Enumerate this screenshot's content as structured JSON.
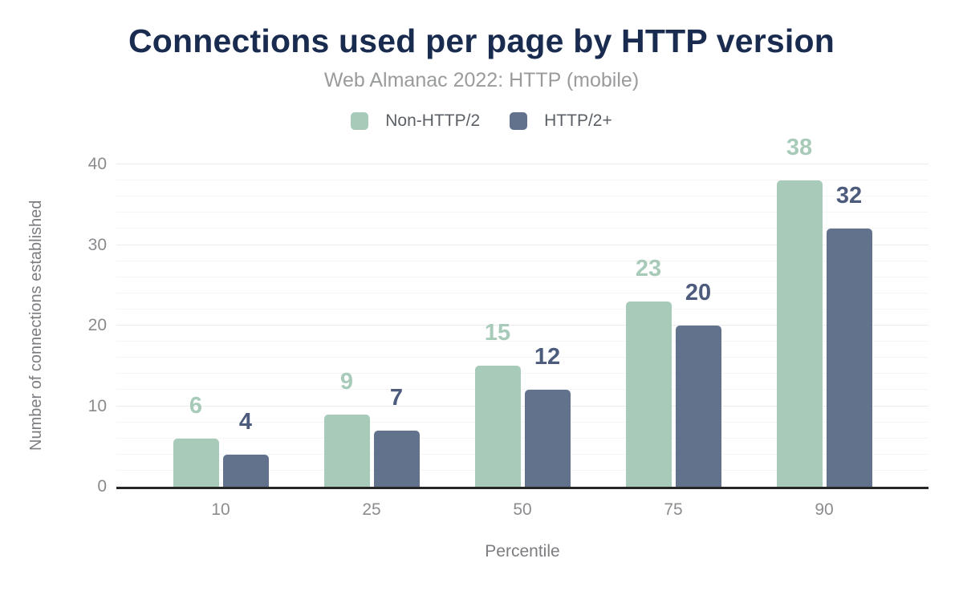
{
  "header": {
    "title": "Connections used per page by HTTP version",
    "subtitle": "Web Almanac 2022: HTTP (mobile)"
  },
  "chart_data": {
    "type": "bar",
    "title": "Connections used per page by HTTP version",
    "subtitle": "Web Almanac 2022: HTTP (mobile)",
    "categories": [
      "10",
      "25",
      "50",
      "75",
      "90"
    ],
    "series": [
      {
        "name": "Non-HTTP/2",
        "color": "#a8cbb9",
        "label_color": "#a8cbb9",
        "values": [
          6,
          9,
          15,
          23,
          38
        ]
      },
      {
        "name": "HTTP/2+",
        "color": "#62728d",
        "label_color": "#4d5c7c",
        "values": [
          4,
          7,
          12,
          20,
          32
        ]
      }
    ],
    "xlabel": "Percentile",
    "ylabel": "Number of connections established",
    "ylim": [
      0,
      40
    ],
    "yticks": [
      0,
      10,
      20,
      30,
      40
    ],
    "grid": {
      "minor_step": 2,
      "major_step": 10,
      "grid_on": true
    },
    "legend_position": "top",
    "data_labels": true,
    "colors": {
      "title": "#1a2b50",
      "subtitle": "#999b9d",
      "axis_line": "#262626",
      "tick_text": "#8a8c8f"
    }
  }
}
